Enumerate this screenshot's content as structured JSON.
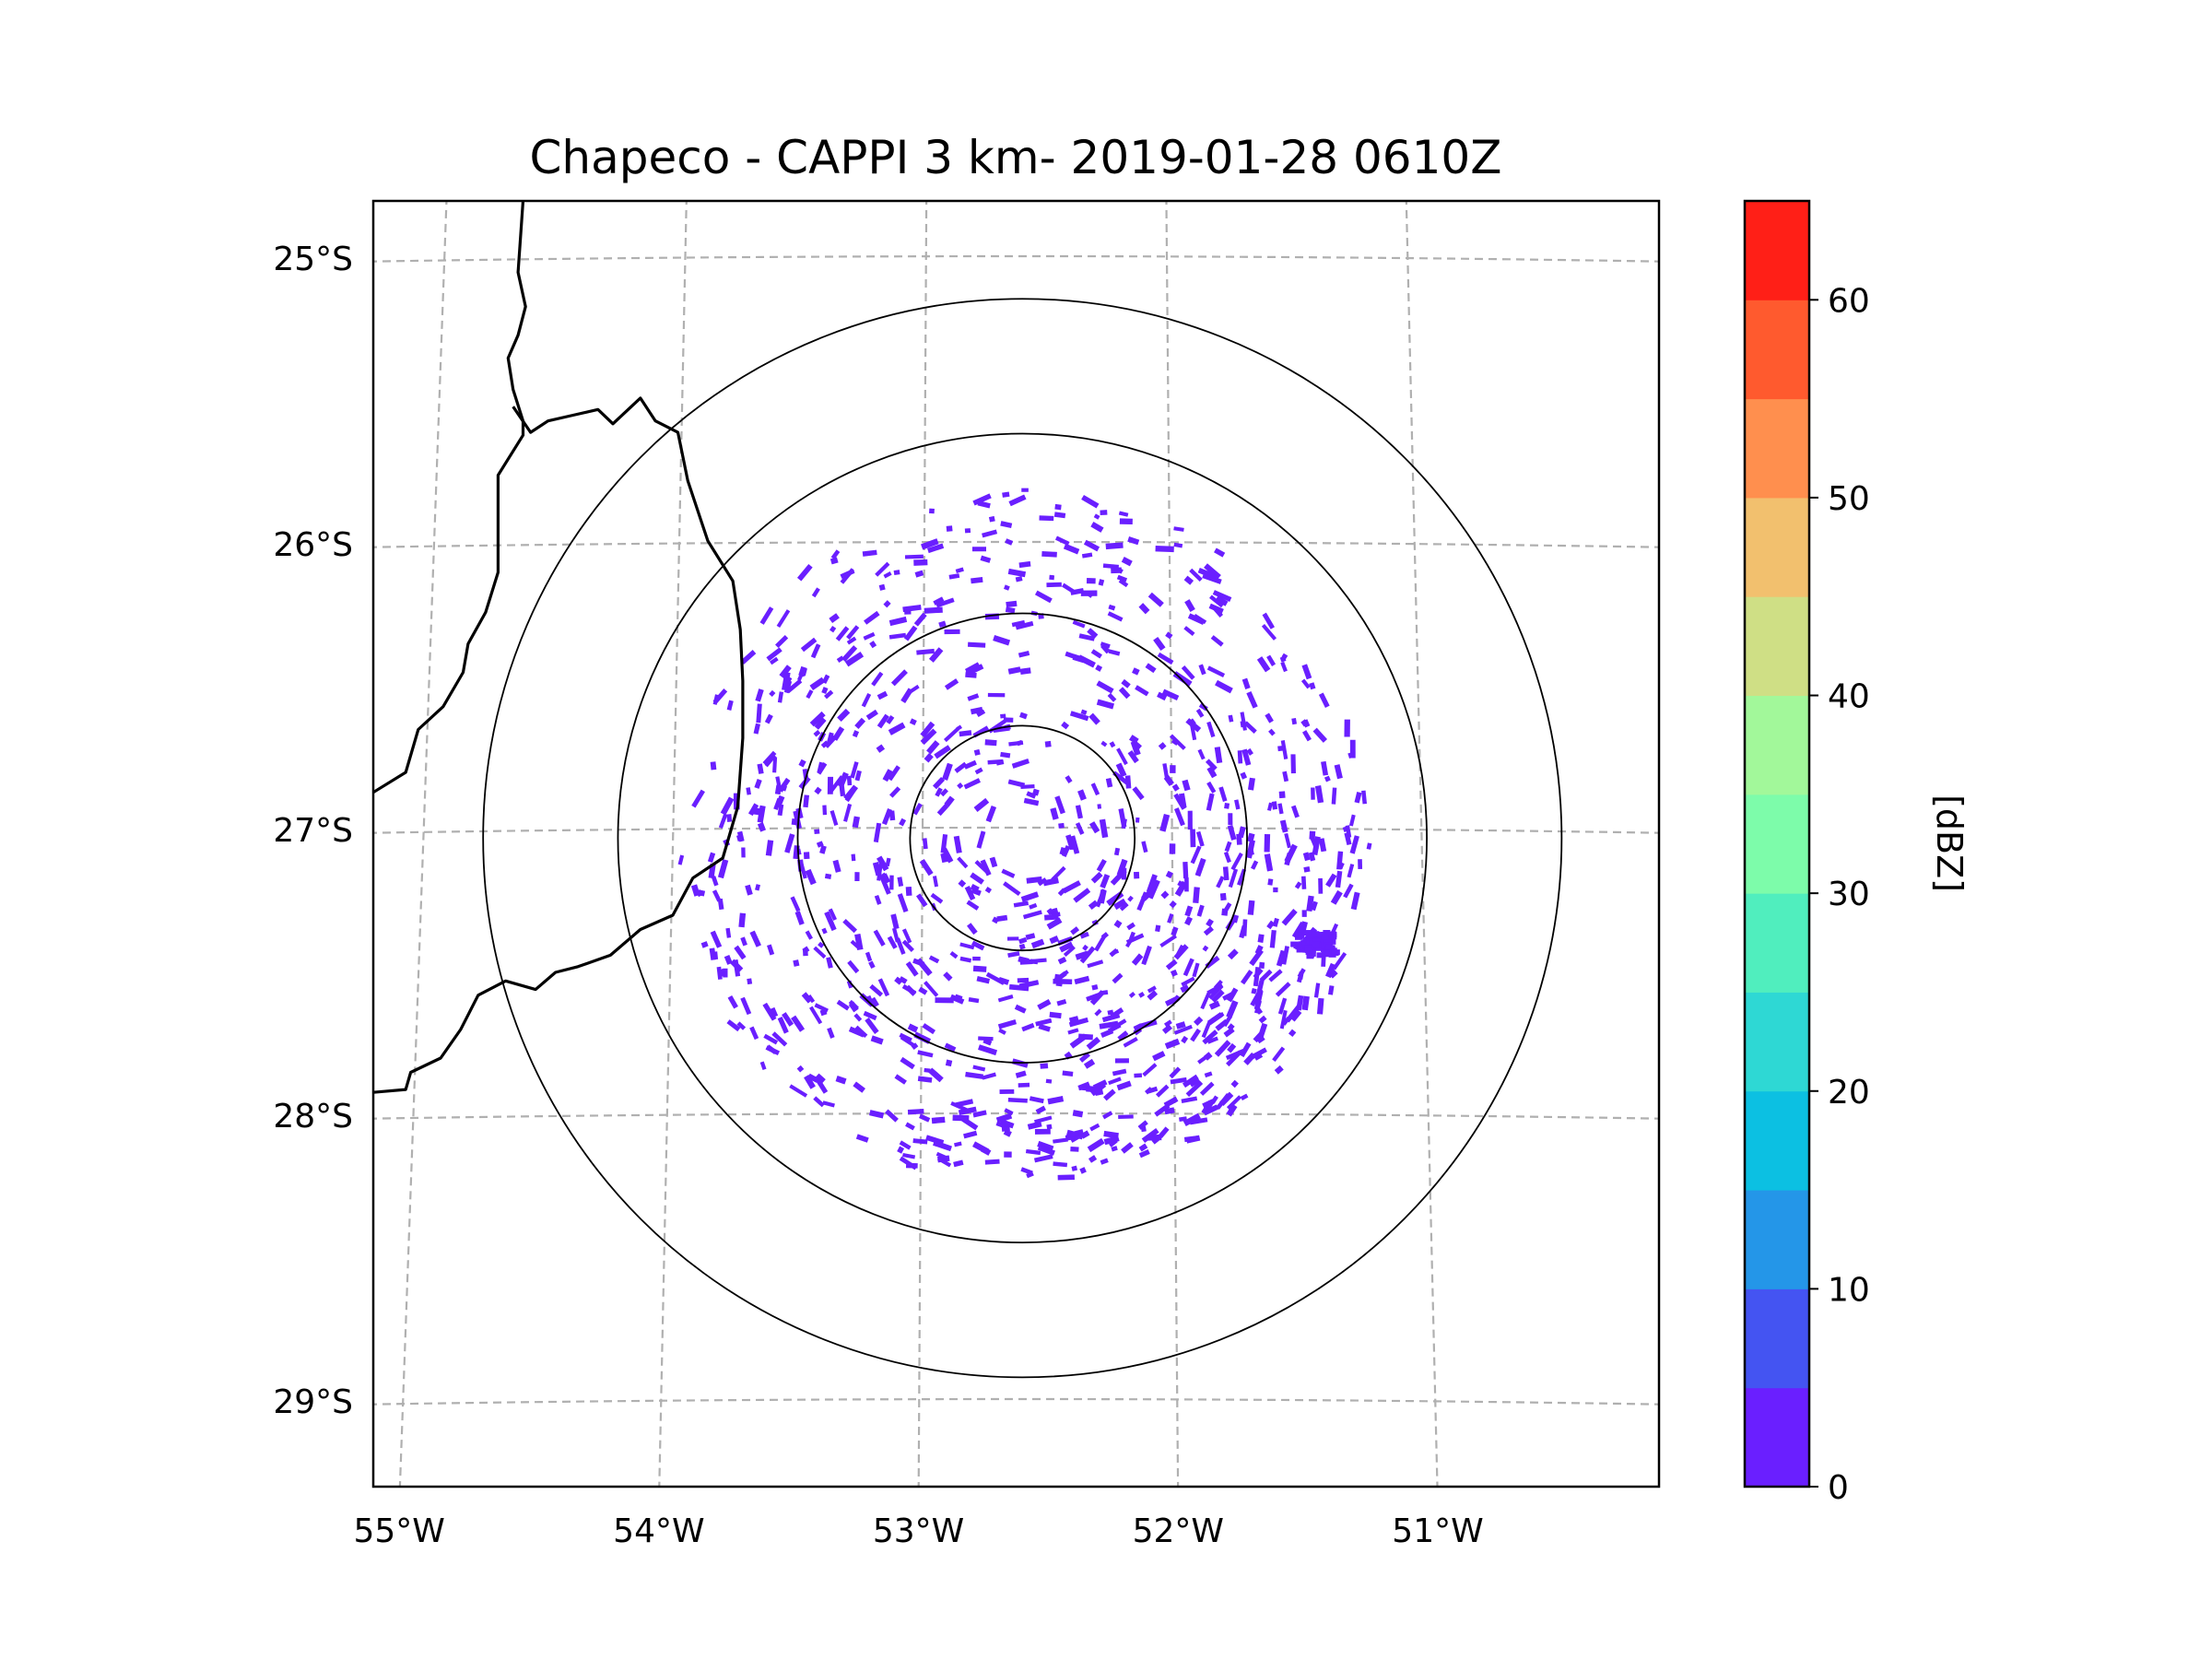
{
  "title": "Chapeco - CAPPI 3 km- 2019-01-28 0610Z",
  "map": {
    "lon_range": [
      -55.2,
      -50.05
    ],
    "lat_range": [
      -29.3,
      -24.8
    ],
    "radar_center": {
      "lon": -52.6,
      "lat": -27.03
    },
    "range_rings_deg": [
      0.45,
      0.9,
      1.62,
      2.16
    ],
    "lon_ticks": [
      {
        "value": -55,
        "label": "55°W"
      },
      {
        "value": -54,
        "label": "54°W"
      },
      {
        "value": -53,
        "label": "53°W"
      },
      {
        "value": -52,
        "label": "52°W"
      },
      {
        "value": -51,
        "label": "51°W"
      }
    ],
    "lat_ticks": [
      {
        "value": -25,
        "label": "25°S"
      },
      {
        "value": -26,
        "label": "26°S"
      },
      {
        "value": -27,
        "label": "27°S"
      },
      {
        "value": -28,
        "label": "28°S"
      },
      {
        "value": -29,
        "label": "29°S"
      }
    ],
    "gridline_color": "#b0b0b0",
    "echo_color": "#6a1fff",
    "border_color": "#000000"
  },
  "colorbar": {
    "label": "[dBZ]",
    "min": 0,
    "max": 65,
    "step": 5,
    "ticks": [
      {
        "value": 0,
        "label": "0"
      },
      {
        "value": 10,
        "label": "10"
      },
      {
        "value": 20,
        "label": "20"
      },
      {
        "value": 30,
        "label": "30"
      },
      {
        "value": 40,
        "label": "40"
      },
      {
        "value": 50,
        "label": "50"
      },
      {
        "value": 60,
        "label": "60"
      }
    ],
    "colors": [
      "#6a1fff",
      "#4454f2",
      "#2496e8",
      "#0cc0e2",
      "#2ed8d4",
      "#50eebe",
      "#7dfcaa",
      "#a2f89a",
      "#cfdf85",
      "#f2c06e",
      "#ff8f4e",
      "#ff5a2e",
      "#ff1f17"
    ]
  }
}
